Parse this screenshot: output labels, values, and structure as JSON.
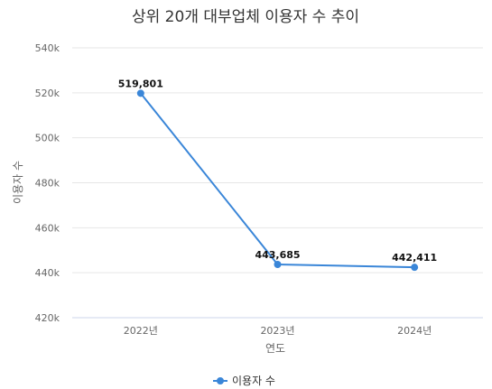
{
  "chart_data": {
    "type": "line",
    "title": "상위 20개 대부업체 이용자 수 추이",
    "xlabel": "연도",
    "ylabel": "이용자 수",
    "categories": [
      "2022년",
      "2023년",
      "2024년"
    ],
    "series": [
      {
        "name": "이용자 수",
        "values": [
          519801,
          443685,
          442411
        ],
        "labels": [
          "519,801",
          "443,685",
          "442,411"
        ],
        "color": "#3a86d8"
      }
    ],
    "ylim": [
      420000,
      540000
    ],
    "yticks": [
      420000,
      440000,
      460000,
      480000,
      500000,
      520000,
      540000
    ],
    "ytick_labels": [
      "420k",
      "440k",
      "460k",
      "480k",
      "500k",
      "520k",
      "540k"
    ],
    "grid": true,
    "legend": "bottom-center"
  }
}
